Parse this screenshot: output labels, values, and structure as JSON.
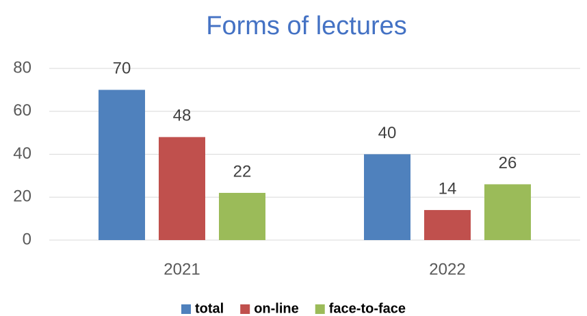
{
  "chart_data": {
    "type": "bar",
    "title": "Forms of lectures",
    "categories": [
      "2021",
      "2022"
    ],
    "series": [
      {
        "name": "total",
        "color": "#4f81bd",
        "values": [
          70,
          40
        ]
      },
      {
        "name": "on-line",
        "color": "#c0504d",
        "values": [
          48,
          14
        ]
      },
      {
        "name": "face-to-face",
        "color": "#9bbb59",
        "values": [
          22,
          26
        ]
      }
    ],
    "ylim": [
      0,
      80
    ],
    "yticks": [
      0,
      20,
      40,
      60,
      80
    ],
    "grid": true,
    "legend": "bottom"
  }
}
